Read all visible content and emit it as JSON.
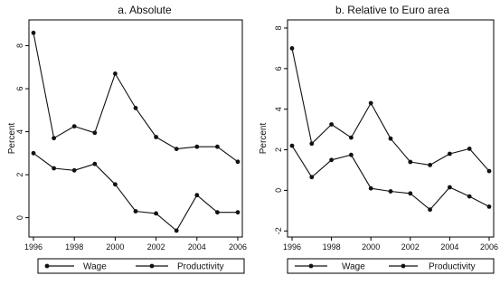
{
  "chart_data": [
    {
      "type": "line",
      "title": "a. Absolute",
      "xlabel": "",
      "ylabel": "Percent",
      "x": [
        1996,
        1997,
        1998,
        1999,
        2000,
        2001,
        2002,
        2003,
        2004,
        2005,
        2006
      ],
      "xticks": [
        "1996",
        "1998",
        "2000",
        "2002",
        "2004",
        "2006"
      ],
      "yticks": [
        "0",
        "2",
        "4",
        "6",
        "8"
      ],
      "xlim": [
        1996,
        2006
      ],
      "ylim": [
        -0.9,
        9.2
      ],
      "series": [
        {
          "name": "Wage",
          "values": [
            8.6,
            3.7,
            4.25,
            3.95,
            6.7,
            5.1,
            3.75,
            3.2,
            3.3,
            3.3,
            2.6
          ]
        },
        {
          "name": "Productivity",
          "values": [
            3.0,
            2.3,
            2.2,
            2.5,
            1.55,
            0.3,
            0.2,
            -0.6,
            1.05,
            0.25,
            0.25
          ]
        }
      ],
      "legend": {
        "position": "bottom",
        "items": [
          "Wage",
          "Productivity"
        ]
      }
    },
    {
      "type": "line",
      "title": "b. Relative to Euro area",
      "xlabel": "",
      "ylabel": "Percent",
      "x": [
        1996,
        1997,
        1998,
        1999,
        2000,
        2001,
        2002,
        2003,
        2004,
        2005,
        2006
      ],
      "xticks": [
        "1996",
        "1998",
        "2000",
        "2002",
        "2004",
        "2006"
      ],
      "yticks": [
        "-2",
        "0",
        "2",
        "4",
        "6",
        "8"
      ],
      "xlim": [
        1996,
        2006
      ],
      "ylim": [
        -2.3,
        8.4
      ],
      "series": [
        {
          "name": "Wage",
          "values": [
            7.0,
            2.3,
            3.25,
            2.6,
            4.3,
            2.55,
            1.4,
            1.25,
            1.8,
            2.05,
            0.95
          ]
        },
        {
          "name": "Productivity",
          "values": [
            2.2,
            0.65,
            1.5,
            1.75,
            0.1,
            -0.05,
            -0.15,
            -0.95,
            0.15,
            -0.3,
            -0.8
          ]
        }
      ],
      "legend": {
        "position": "bottom",
        "items": [
          "Wage",
          "Productivity"
        ]
      }
    }
  ]
}
